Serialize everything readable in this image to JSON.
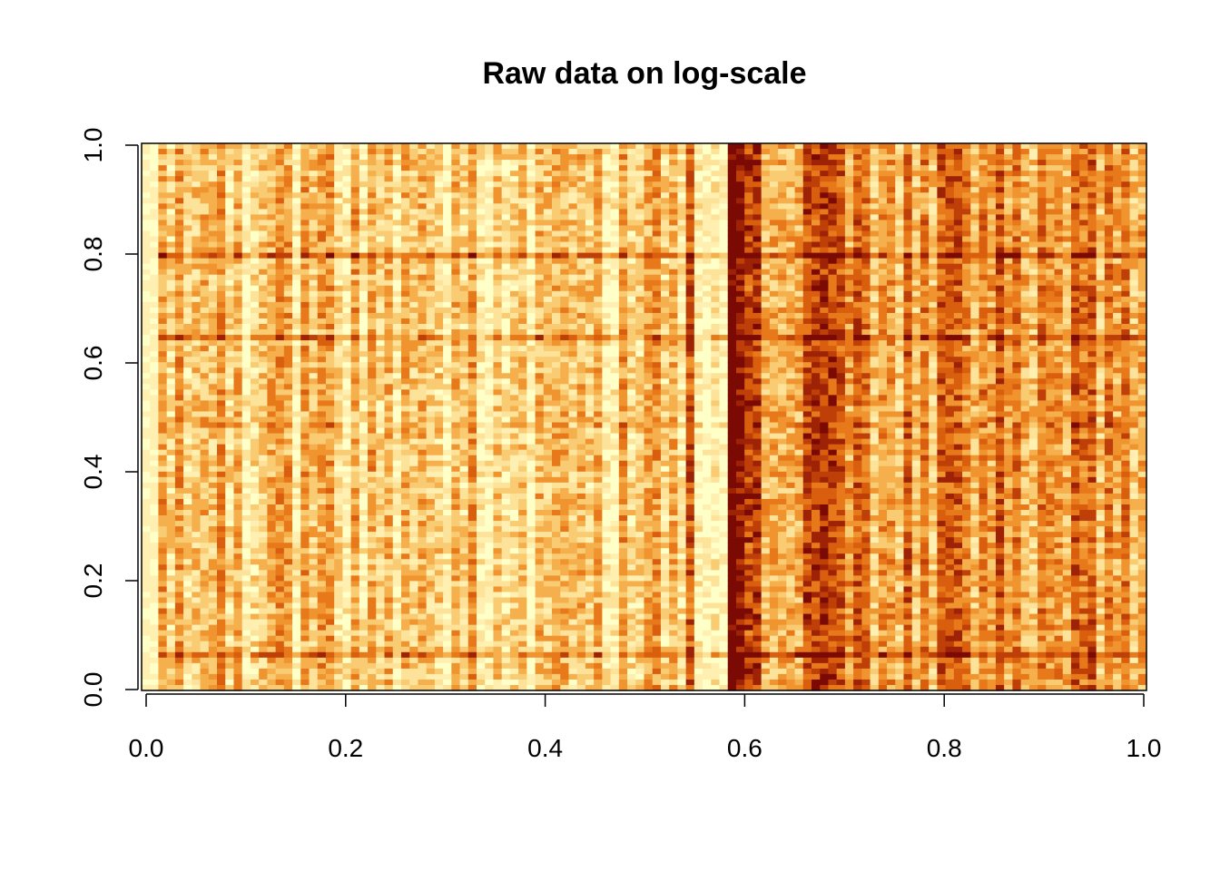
{
  "chart_data": {
    "type": "heatmap",
    "title": "Raw data on log-scale",
    "xlabel": "",
    "ylabel": "",
    "xlim": [
      0,
      1
    ],
    "ylim": [
      0,
      1
    ],
    "x_ticks": [
      "0.0",
      "0.2",
      "0.4",
      "0.6",
      "0.8",
      "1.0"
    ],
    "y_ticks": [
      "0.0",
      "0.2",
      "0.4",
      "0.6",
      "0.8",
      "1.0"
    ],
    "grid": false,
    "legend": "none",
    "colormap": "heat (R heat.colors, reversed)",
    "colors": {
      "palette": [
        "#ffffc8",
        "#ffefb0",
        "#fde39a",
        "#f9cb72",
        "#f5b04d",
        "#f0942f",
        "#e8791a",
        "#d95e0d",
        "#bf3f08",
        "#9e2205",
        "#7a0a03"
      ]
    },
    "grid_size": {
      "columns": 120,
      "rows": 100
    },
    "column_intensity_profile": [
      {
        "x_from": 0.0,
        "x_to": 0.02,
        "mean_level": 0.05
      },
      {
        "x_from": 0.02,
        "x_to": 0.54,
        "mean_level": 0.3
      },
      {
        "x_from": 0.54,
        "x_to": 0.55,
        "mean_level": 0.85
      },
      {
        "x_from": 0.55,
        "x_to": 0.58,
        "mean_level": 0.12
      },
      {
        "x_from": 0.58,
        "x_to": 0.61,
        "mean_level": 0.9
      },
      {
        "x_from": 0.61,
        "x_to": 0.7,
        "mean_level": 0.6
      },
      {
        "x_from": 0.7,
        "x_to": 1.0,
        "mean_level": 0.5
      }
    ]
  }
}
